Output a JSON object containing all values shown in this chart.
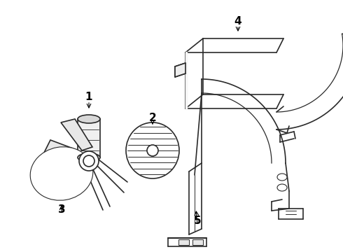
{
  "background_color": "#ffffff",
  "line_color": "#2a2a2a",
  "label_color": "#000000",
  "fig_width": 4.9,
  "fig_height": 3.6,
  "dpi": 100,
  "label_fontsize": 10
}
